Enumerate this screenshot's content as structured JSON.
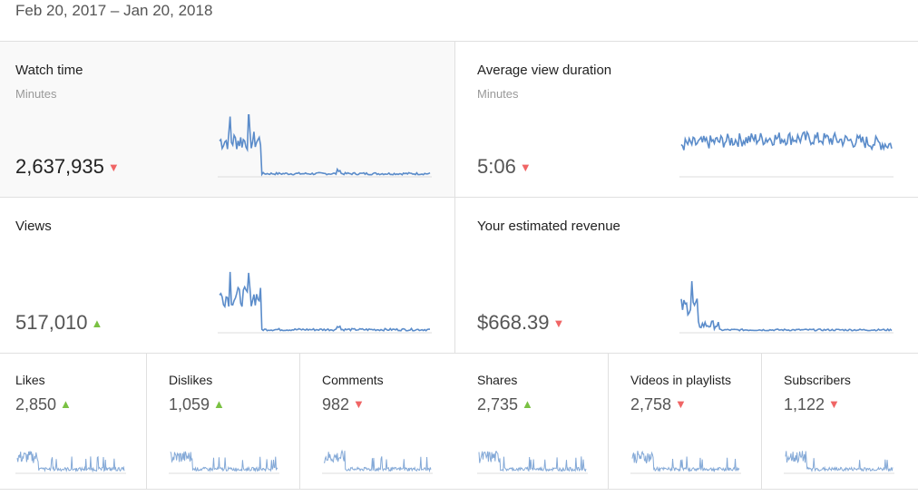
{
  "date_range": "Feb 20, 2017 – Jan 20, 2018",
  "colors": {
    "line": "#5b8cca",
    "down": "#f06565",
    "up": "#7ac143"
  },
  "big_cards": [
    {
      "title": "Watch time",
      "subtitle": "Minutes",
      "value": "2,637,935",
      "trend": "down",
      "shape": "spike"
    },
    {
      "title": "Average view duration",
      "subtitle": "Minutes",
      "value": "5:06",
      "trend": "down",
      "shape": "noise"
    },
    {
      "title": "Views",
      "subtitle": "",
      "value": "517,010",
      "trend": "up",
      "shape": "spike"
    },
    {
      "title": "Your estimated revenue",
      "subtitle": "",
      "value": "$668.39",
      "trend": "down",
      "shape": "decay"
    }
  ],
  "small_cards": [
    {
      "title": "Likes",
      "value": "2,850",
      "trend": "up"
    },
    {
      "title": "Dislikes",
      "value": "1,059",
      "trend": "up"
    },
    {
      "title": "Comments",
      "value": "982",
      "trend": "down"
    },
    {
      "title": "Shares",
      "value": "2,735",
      "trend": "up"
    },
    {
      "title": "Videos in playlists",
      "value": "2,758",
      "trend": "down"
    },
    {
      "title": "Subscribers",
      "value": "1,122",
      "trend": "down"
    }
  ]
}
